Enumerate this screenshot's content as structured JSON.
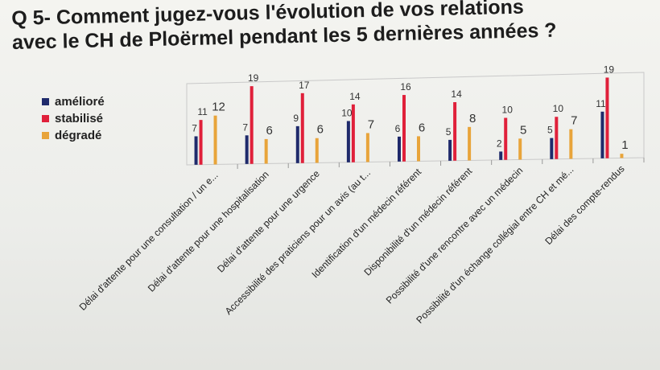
{
  "title_lines": [
    "Q 5- Comment jugez-vous l'évolution de vos relations",
    "avec le CH de Ploërmel pendant les 5 dernières années ?"
  ],
  "colors": {
    "ameliore": "#1f2a6b",
    "stabilise": "#e0203a",
    "degrade": "#e8a43a"
  },
  "chart_data": {
    "type": "bar",
    "title": "Q 5- Comment jugez-vous l'évolution de vos relations avec le CH de Ploërmel pendant les 5 dernières années ?",
    "categories": [
      "Délai d'attente pour une consultation / un e...",
      "Délai d'attente pour une hospitalisation",
      "Délai d'attente pour une urgence",
      "Accessibilité des praticiens pour un avis (au t...",
      "Identification d'un médecin référent",
      "Disponibilité d'un médecin référent",
      "Possibilité d'une rencontre avec un médecin",
      "Possibilité d'un échange collégial entre CH et mé...",
      "Délai des compte-rendus"
    ],
    "series": [
      {
        "name": "amélioré",
        "values": [
          7,
          7,
          9,
          10,
          6,
          5,
          2,
          5,
          11
        ]
      },
      {
        "name": "stabilisé",
        "values": [
          11,
          19,
          17,
          14,
          16,
          14,
          10,
          10,
          19
        ]
      },
      {
        "name": "dégradé",
        "values": [
          12,
          6,
          6,
          7,
          6,
          8,
          5,
          7,
          1
        ]
      }
    ],
    "ylim": [
      0,
      20
    ],
    "legend_position": "left",
    "grid": false
  }
}
